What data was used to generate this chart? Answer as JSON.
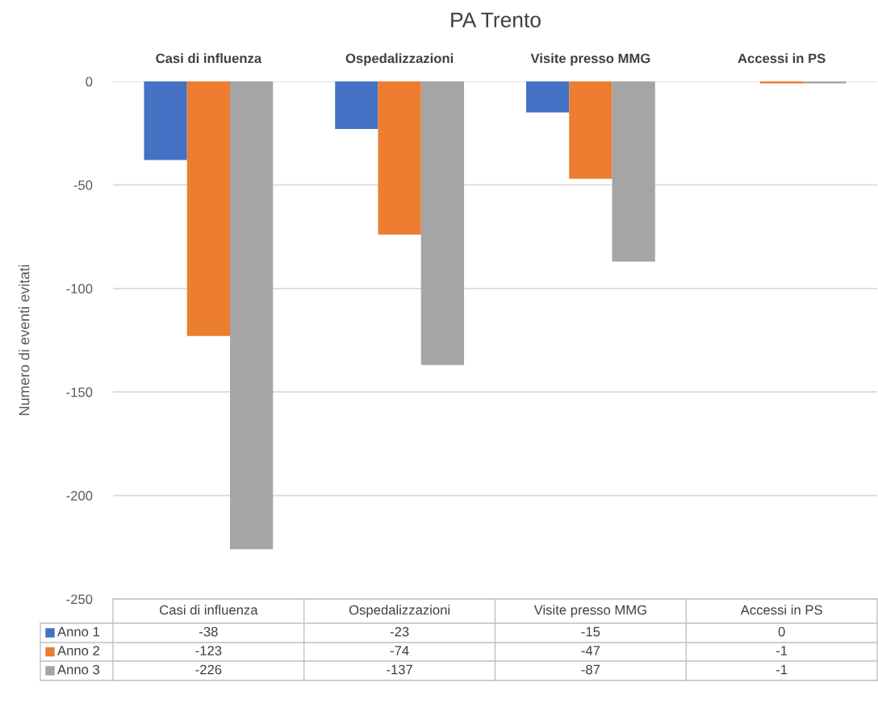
{
  "chart_data": {
    "type": "bar",
    "title": "PA Trento",
    "ylabel": "Numero di eventi evitati",
    "categories": [
      "Casi di influenza",
      "Ospedalizzazioni",
      "Visite presso MMG",
      "Accessi in PS"
    ],
    "series": [
      {
        "name": "Anno 1",
        "color": "#4472c4",
        "values": [
          -38,
          -23,
          -15,
          0
        ]
      },
      {
        "name": "Anno 2",
        "color": "#ed7d31",
        "values": [
          -123,
          -74,
          -47,
          -1
        ]
      },
      {
        "name": "Anno 3",
        "color": "#a5a5a5",
        "values": [
          -226,
          -137,
          -87,
          -1
        ]
      }
    ],
    "ylim": [
      -250,
      0
    ],
    "yticks": [
      -250,
      -200,
      -150,
      -100,
      -50,
      0
    ],
    "grid": "y",
    "legend": "bottom",
    "data_labels": true
  }
}
